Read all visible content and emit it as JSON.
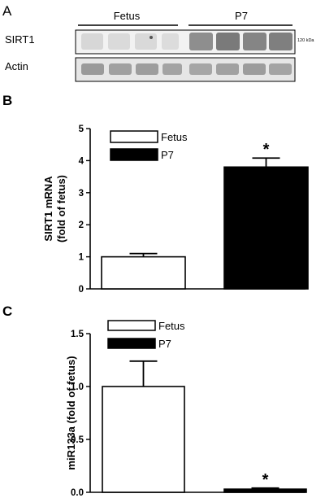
{
  "panels": {
    "a": {
      "letter": "A",
      "group_labels": [
        "Fetus",
        "P7"
      ],
      "band_labels": [
        "SIRT1",
        "Actin"
      ],
      "kda_label": "120 kDa",
      "lanes_per_group": 4
    },
    "b": {
      "letter": "B"
    },
    "c": {
      "letter": "C"
    }
  },
  "chart_data": [
    {
      "type": "bar",
      "categories": [
        "Fetus",
        "P7"
      ],
      "values": [
        1.0,
        3.8
      ],
      "errors": [
        0.1,
        0.28
      ],
      "colors": [
        "#ffffff",
        "#000000"
      ],
      "significance": [
        "",
        "*"
      ],
      "title": "",
      "xlabel": "",
      "ylabel": "SIRT1 mRNA\n(fold of fetus)",
      "ylim": [
        0,
        5
      ],
      "yticks": [
        "0",
        "1",
        "2",
        "3",
        "4",
        "5"
      ],
      "legend": [
        "Fetus",
        "P7"
      ],
      "legend_position": "top-left",
      "grid": false
    },
    {
      "type": "bar",
      "categories": [
        "Fetus",
        "P7"
      ],
      "values": [
        1.0,
        0.03
      ],
      "errors": [
        0.24,
        0.01
      ],
      "colors": [
        "#ffffff",
        "#000000"
      ],
      "significance": [
        "",
        "*"
      ],
      "title": "",
      "xlabel": "",
      "ylabel": "miR133a (fold of fetus)",
      "ylim": [
        0,
        1.5
      ],
      "yticks": [
        "0.0",
        "0.5",
        "1.0",
        "1.5"
      ],
      "legend": [
        "Fetus",
        "P7"
      ],
      "legend_position": "top-left",
      "grid": false
    }
  ]
}
